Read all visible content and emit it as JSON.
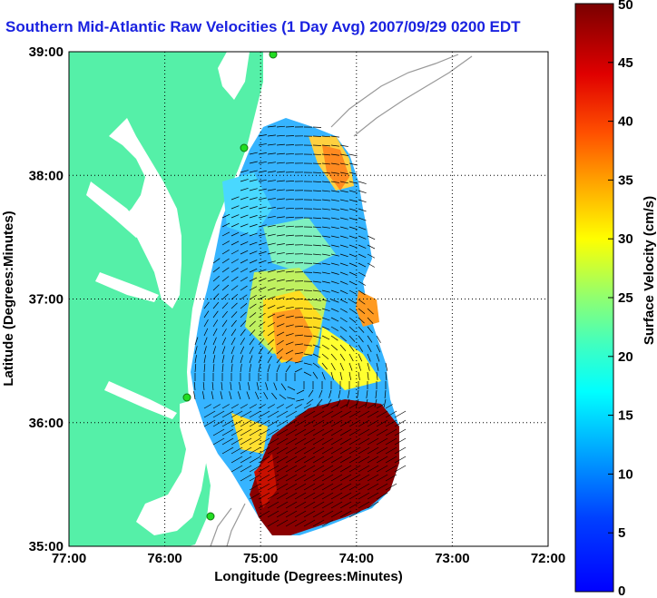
{
  "title": "Southern Mid-Atlantic Raw Velocities (1 Day Avg) 2007/09/29 0200 EDT",
  "map": {
    "xlabel": "Longitude (Degrees:Minutes)",
    "ylabel": "Latitude (Degrees:Minutes)",
    "lon_ticks": [
      "77:00",
      "76:00",
      "75:00",
      "74:00",
      "73:00",
      "72:00"
    ],
    "lat_ticks": [
      "35:00",
      "36:00",
      "37:00",
      "38:00",
      "39:00"
    ],
    "lon_range": [
      -77,
      -72
    ],
    "lat_range": [
      35,
      39
    ],
    "grid": true,
    "land_color": "#55f0a8",
    "station_color": "#22dd22"
  },
  "colorbar": {
    "label": "Surface Velocity (cm/s)",
    "ticks": [
      "0",
      "5",
      "10",
      "15",
      "20",
      "25",
      "30",
      "35",
      "40",
      "45",
      "50"
    ],
    "range": [
      0,
      50
    ],
    "colormap": "jet"
  }
}
